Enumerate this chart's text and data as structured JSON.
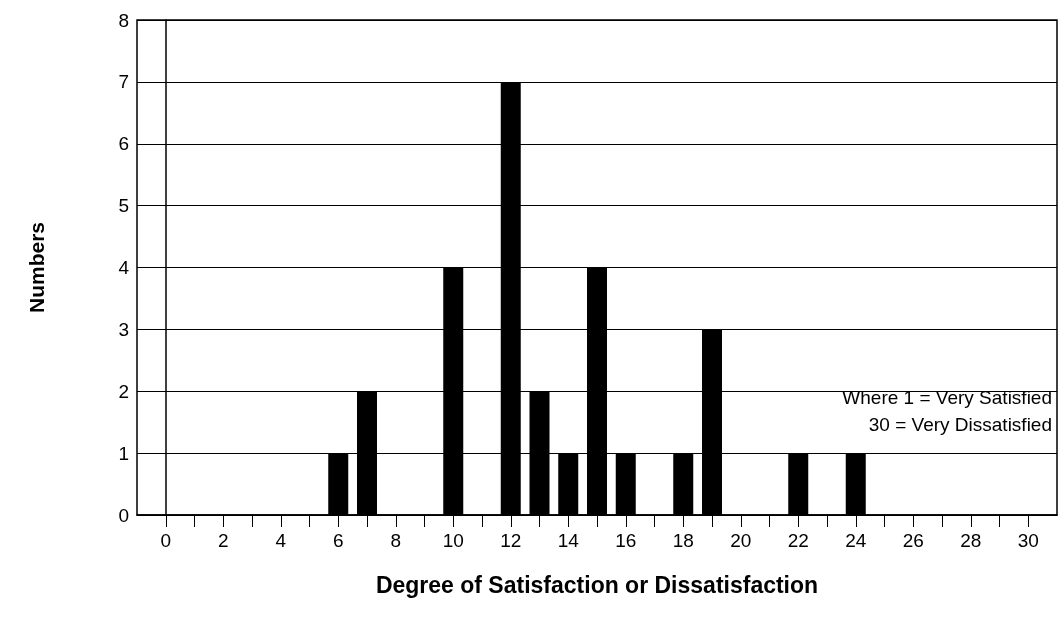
{
  "chart_data": {
    "type": "bar",
    "xlabel": "Degree of Satisfaction or Dissatisfaction",
    "ylabel": "Numbers",
    "x": [
      6,
      7,
      10,
      12,
      13,
      14,
      15,
      16,
      18,
      19,
      22,
      24
    ],
    "values": [
      1,
      2,
      4,
      7,
      2,
      1,
      4,
      1,
      1,
      3,
      1,
      1
    ],
    "color": "#000000",
    "xlim": [
      -1,
      31
    ],
    "xticks": [
      0,
      {
        "value": 1,
        "label": null
      },
      2,
      {
        "value": 3,
        "label": null
      },
      4,
      {
        "value": 5,
        "label": null
      },
      6,
      {
        "value": 7,
        "label": null
      },
      8,
      {
        "value": 9,
        "label": null
      },
      10,
      {
        "value": 11,
        "label": null
      },
      12,
      {
        "value": 13,
        "label": null
      },
      14,
      {
        "value": 15,
        "label": null
      },
      16,
      {
        "value": 17,
        "label": null
      },
      18,
      {
        "value": 19,
        "label": null
      },
      20,
      {
        "value": 21,
        "label": null
      },
      22,
      {
        "value": 23,
        "label": null
      },
      24,
      {
        "value": 25,
        "label": null
      },
      26,
      {
        "value": 27,
        "label": null
      },
      28,
      {
        "value": 29,
        "label": null
      },
      30
    ],
    "ylim": [
      0,
      8
    ],
    "yticks": [
      0,
      1,
      2,
      3,
      4,
      5,
      6,
      7,
      8
    ],
    "grid": "y",
    "annotations": [
      "Where 1 = Very Satisfied",
      "30 = Very Dissatisfied"
    ]
  }
}
